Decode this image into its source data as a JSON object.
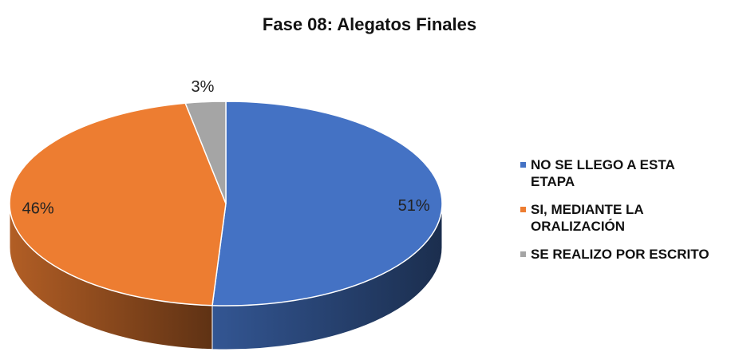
{
  "chart_data": {
    "type": "pie",
    "title": "Fase 08: Alegatos Finales",
    "categories": [
      "NO SE LLEGO A ESTA ETAPA",
      "SI, MEDIANTE LA ORALIZACIÓN",
      "SE REALIZO POR ESCRITO"
    ],
    "values": [
      51,
      46,
      3
    ],
    "value_labels": [
      "51%",
      "46%",
      "3%"
    ],
    "colors": [
      "#4472c4",
      "#ed7d31",
      "#a5a5a5"
    ],
    "legend": "right"
  }
}
